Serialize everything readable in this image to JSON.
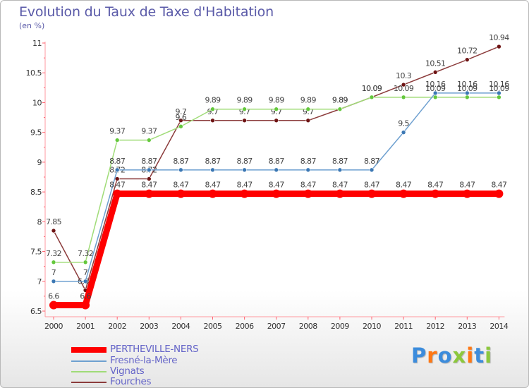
{
  "chart_data": {
    "type": "line",
    "title": "Evolution du Taux de Taxe d'Habitation",
    "subtitle": "(en %)",
    "x": [
      "2000",
      "2001",
      "2002",
      "2003",
      "2004",
      "2005",
      "2006",
      "2007",
      "2008",
      "2009",
      "2010",
      "2011",
      "2012",
      "2013",
      "2014"
    ],
    "ylim": [
      6.5,
      11
    ],
    "yticks": [
      "6.5",
      "7",
      "7.5",
      "8",
      "8.5",
      "9",
      "9.5",
      "10",
      "10.5",
      "11"
    ],
    "grid": false,
    "legend": "bottom-left",
    "series": [
      {
        "name": "PERTHEVILLE-NERS",
        "color": "#ff0000",
        "values": [
          6.6,
          6.6,
          8.47,
          8.47,
          8.47,
          8.47,
          8.47,
          8.47,
          8.47,
          8.47,
          8.47,
          8.47,
          8.47,
          8.47,
          8.47
        ],
        "labels": [
          "6.6",
          "6.6",
          "8.47",
          "8.47",
          "8.47",
          "8.47",
          "8.47",
          "8.47",
          "8.47",
          "8.47",
          "8.47",
          "8.47",
          "8.47",
          "8.47",
          "8.47"
        ]
      },
      {
        "name": "Fresné-la-Mère",
        "color": "#6ea0d0",
        "dot": "#3c78b4",
        "values": [
          7,
          7,
          8.87,
          8.87,
          8.87,
          8.87,
          8.87,
          8.87,
          8.87,
          8.87,
          8.87,
          9.5,
          10.16,
          10.16,
          10.16
        ],
        "labels": [
          "7",
          "7",
          "8.87",
          "8.87",
          "8.87",
          "8.87",
          "8.87",
          "8.87",
          "8.87",
          "8.87",
          "8.87",
          "9.5",
          "10.16",
          "10.16",
          "10.16"
        ]
      },
      {
        "name": "Vignats",
        "color": "#a0dc78",
        "dot": "#64c83c",
        "values": [
          7.32,
          7.32,
          9.37,
          9.37,
          9.6,
          9.89,
          9.89,
          9.89,
          9.89,
          9.89,
          10.09,
          10.09,
          10.09,
          10.09,
          10.09
        ],
        "labels": [
          "7.32",
          "7.32",
          "9.37",
          "9.37",
          "9.6",
          "9.89",
          "9.89",
          "9.89",
          "9.89",
          "9.89",
          "10.09",
          "10.09",
          "10.09",
          "10.09",
          "10.09"
        ]
      },
      {
        "name": "Fourches",
        "color": "#8c3c3c",
        "dot": "#6e1414",
        "values": [
          7.85,
          6.85,
          8.72,
          8.72,
          9.7,
          9.7,
          9.7,
          9.7,
          9.7,
          9.89,
          10.09,
          10.3,
          10.51,
          10.72,
          10.94
        ],
        "labels": [
          "7.85",
          "6.85",
          "8.72",
          "8.72",
          "9.7",
          "9.7",
          "9.7",
          "9.7",
          "9.7",
          "9.89",
          "10.09",
          "10.3",
          "10.51",
          "10.72",
          "10.94"
        ]
      }
    ]
  },
  "logo": {
    "text": "Proxiti",
    "colors": [
      "#3c8cdc",
      "#ff7814",
      "#3c8cdc",
      "#8cc83c",
      "#ff7814",
      "#3c8cdc",
      "#8cc83c"
    ]
  }
}
